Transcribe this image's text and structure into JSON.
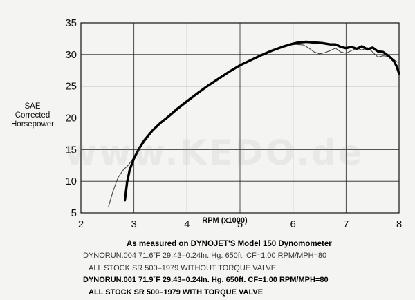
{
  "chart_data": {
    "type": "line",
    "title": "",
    "xlabel": "RPM (x1000)",
    "ylabel": "SAE\nCorrected\nHorsepower",
    "ylabel_lines": [
      "SAE",
      "Corrected",
      "Horsepower"
    ],
    "xlim": [
      2,
      8
    ],
    "ylim": [
      5,
      35
    ],
    "x_ticks": [
      "2",
      "3",
      "4",
      "5",
      "6",
      "7",
      "8"
    ],
    "y_ticks": [
      "5",
      "10",
      "15",
      "20",
      "25",
      "30",
      "35"
    ],
    "grid": true,
    "series": [
      {
        "style": "thin",
        "color": "#444444",
        "x": [
          2.52,
          2.6,
          2.7,
          2.8,
          2.9,
          3.0,
          3.1,
          3.25,
          3.4,
          3.6,
          3.8,
          4.0,
          4.2,
          4.4,
          4.6,
          4.8,
          5.0,
          5.2,
          5.4,
          5.6,
          5.75,
          5.9,
          6.05,
          6.2,
          6.3,
          6.4,
          6.5,
          6.6,
          6.7,
          6.8,
          6.9,
          7.0,
          7.1,
          7.2,
          7.3,
          7.4,
          7.5,
          7.6,
          7.7,
          7.8,
          7.9,
          7.97
        ],
        "values": [
          6.0,
          8.3,
          10.6,
          11.8,
          12.6,
          13.8,
          15.0,
          16.8,
          18.5,
          20.0,
          21.5,
          22.8,
          24.0,
          25.2,
          26.2,
          27.2,
          28.2,
          29.2,
          29.9,
          30.7,
          31.1,
          31.5,
          31.6,
          31.5,
          31.0,
          30.4,
          30.1,
          30.3,
          30.6,
          31.0,
          30.4,
          30.2,
          30.6,
          31.0,
          30.7,
          31.1,
          30.4,
          29.6,
          29.8,
          29.7,
          29.2,
          28.8
        ]
      },
      {
        "style": "thick",
        "color": "#000000",
        "x": [
          2.83,
          2.87,
          2.92,
          3.0,
          3.1,
          3.2,
          3.35,
          3.5,
          3.65,
          3.8,
          4.0,
          4.2,
          4.4,
          4.6,
          4.8,
          5.0,
          5.2,
          5.4,
          5.6,
          5.8,
          5.95,
          6.1,
          6.25,
          6.4,
          6.55,
          6.7,
          6.8,
          6.9,
          7.0,
          7.1,
          7.2,
          7.3,
          7.4,
          7.5,
          7.6,
          7.7,
          7.8,
          7.85,
          7.9,
          7.95,
          8.0
        ],
        "values": [
          7.0,
          9.8,
          11.8,
          13.6,
          15.2,
          16.5,
          18.0,
          19.2,
          20.2,
          21.3,
          22.6,
          23.9,
          25.1,
          26.2,
          27.3,
          28.3,
          29.1,
          29.9,
          30.6,
          31.2,
          31.6,
          31.9,
          32.0,
          31.9,
          31.8,
          31.6,
          31.6,
          31.2,
          31.0,
          31.2,
          30.9,
          31.3,
          30.8,
          31.1,
          30.5,
          30.4,
          29.8,
          29.4,
          29.0,
          28.2,
          27.0
        ]
      }
    ]
  },
  "watermark": "www.KEDO.de",
  "caption": {
    "measured_text": "As measured on DYNOJET'S Model 150 Dynomometer",
    "run1_line1": "DYNORUN.004   71.6˚F   29.43–0.24In. Hg.   650ft.   CF=1.00   RPM/MPH=80",
    "run1_line2": "ALL STOCK SR 500–1979 WITHOUT TORQUE VALVE",
    "run2_line1": "DYNORUN.001   71.9˚F   29.43–0.24In. Hg.   650ft.   CF=1.00   RPM/MPH=80",
    "run2_line2": "ALL STOCK SR 500–1979 WITH TORQUE VALVE"
  }
}
